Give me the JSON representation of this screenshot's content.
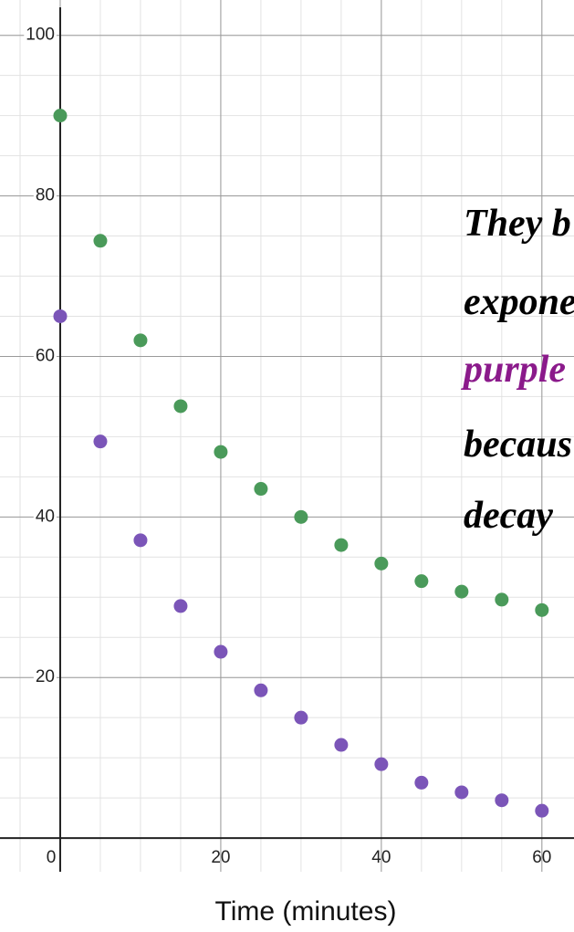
{
  "chart_data": {
    "type": "scatter",
    "x_label": "Time (minutes)",
    "annotations": [
      {
        "text": "They b",
        "color": "#000000"
      },
      {
        "text": "expone",
        "color": "#000000"
      },
      {
        "text": "purple",
        "color": "#8b1a8b"
      },
      {
        "text": "becaus",
        "color": "#000000"
      },
      {
        "text": "decay",
        "color": "#000000"
      }
    ],
    "x": [
      0,
      5,
      10,
      15,
      20,
      25,
      30,
      35,
      40,
      45,
      50,
      55,
      60
    ],
    "series": [
      {
        "color": "#4a9a5a",
        "values": [
          90.0,
          74.4,
          62.0,
          53.8,
          48.1,
          43.5,
          40.0,
          36.5,
          34.2,
          32.0,
          30.7,
          29.7,
          28.4
        ]
      },
      {
        "color": "#7b55b8",
        "values": [
          65.0,
          49.4,
          37.1,
          28.9,
          23.2,
          18.4,
          15.0,
          11.6,
          9.2,
          6.9,
          5.7,
          4.7,
          3.4
        ]
      }
    ],
    "xlim": [
      -7.5,
      64
    ],
    "ylim": [
      -4.2,
      104.4
    ],
    "xticks": [
      0,
      20,
      40,
      60
    ],
    "yticks": [
      20,
      40,
      60,
      80,
      100
    ],
    "grid": true,
    "minor_grid": 5
  }
}
